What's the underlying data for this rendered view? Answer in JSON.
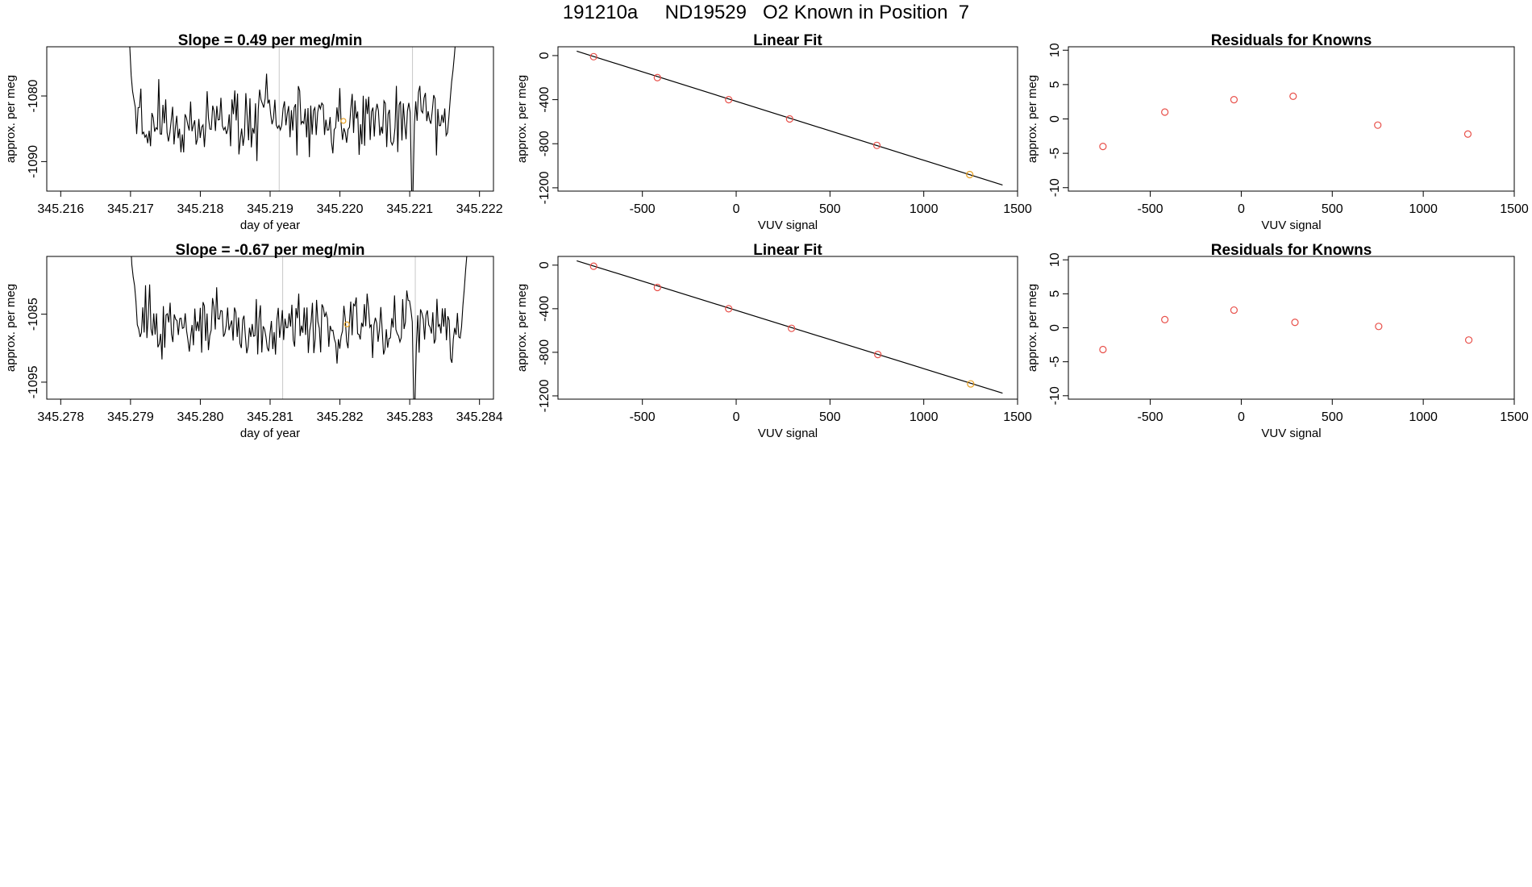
{
  "page_title": "191210a     ND19529   O2 Known in Position  7",
  "colors": {
    "line": "#000000",
    "points": "#e8504a",
    "highlight": "#e8a020",
    "vgrid": "#c8c8c8"
  },
  "chart_data": [
    {
      "type": "line",
      "title": "Slope =  0.49  per meg/min",
      "xlabel": "day of year",
      "ylabel": "approx. per meg",
      "xlim": [
        345.2158,
        345.2222
      ],
      "ylim": [
        -1094.5,
        -1072.5
      ],
      "xticks": [
        345.216,
        345.217,
        345.218,
        345.219,
        345.22,
        345.221,
        345.222
      ],
      "xtick_labels": [
        "345.216",
        "345.217",
        "345.218",
        "345.219",
        "345.220",
        "345.221",
        "345.222"
      ],
      "yticks": [
        -1080,
        -1090
      ],
      "ytick_labels": [
        "-1080",
        "-1090"
      ],
      "vlines": [
        345.21913,
        345.22104
      ],
      "highlight_point": {
        "x": 345.22005,
        "y": -1083.8
      },
      "series": {
        "x_start": 345.21695,
        "x_end": 345.22168,
        "n": 240,
        "seed": 17,
        "mean": -1083.8,
        "spread": 3.2,
        "spike": -1094.5,
        "spike_x": 345.22103,
        "start_y": -1068,
        "end_y": -1068
      }
    },
    {
      "type": "scatter",
      "title": "Linear Fit",
      "xlabel": "VUV signal",
      "ylabel": "approx. per meg",
      "xlim": [
        -950,
        1500
      ],
      "ylim": [
        -1230,
        80
      ],
      "xticks": [
        -500,
        0,
        500,
        1000,
        1500
      ],
      "xtick_labels": [
        "-500",
        "0",
        "500",
        "1000",
        "1500"
      ],
      "yticks": [
        0,
        -400,
        -800,
        -1200
      ],
      "ytick_labels": [
        "0",
        "-400",
        "-800",
        "-1200"
      ],
      "fit_line": {
        "x": [
          -850,
          1420
        ],
        "y": [
          40,
          -1175
        ]
      },
      "points": {
        "x": [
          -760,
          -420,
          -40,
          285,
          750,
          1245
        ],
        "y": [
          -10,
          -200,
          -400,
          -575,
          -815,
          -1080
        ]
      },
      "highlight_index": 5
    },
    {
      "type": "scatter",
      "title": "Residuals for Knowns",
      "xlabel": "VUV signal",
      "ylabel": "approx. per meg",
      "xlim": [
        -950,
        1500
      ],
      "ylim": [
        -10.5,
        10.5
      ],
      "xticks": [
        -500,
        0,
        500,
        1000,
        1500
      ],
      "xtick_labels": [
        "-500",
        "0",
        "500",
        "1000",
        "1500"
      ],
      "yticks": [
        10,
        5,
        0,
        -5,
        -10
      ],
      "ytick_labels": [
        "10",
        "5",
        "0",
        "-5",
        "-10"
      ],
      "points": {
        "x": [
          -760,
          -420,
          -40,
          285,
          750,
          1245
        ],
        "y": [
          -4.0,
          1.0,
          2.8,
          3.3,
          -0.9,
          -2.2
        ]
      }
    },
    {
      "type": "line",
      "title": "Slope =  -0.67  per meg/min",
      "xlabel": "day of year",
      "ylabel": "approx. per meg",
      "xlim": [
        345.2778,
        345.2842
      ],
      "ylim": [
        -1097.5,
        -1076.5
      ],
      "xticks": [
        345.278,
        345.279,
        345.28,
        345.281,
        345.282,
        345.283,
        345.284
      ],
      "xtick_labels": [
        "345.278",
        "345.279",
        "345.280",
        "345.281",
        "345.282",
        "345.283",
        "345.284"
      ],
      "yticks": [
        -1085,
        -1095
      ],
      "ytick_labels": [
        "-1085",
        "-1095"
      ],
      "vlines": [
        345.28118,
        345.28308
      ],
      "highlight_point": {
        "x": 345.2821,
        "y": -1086.5
      },
      "series": {
        "x_start": 345.27898,
        "x_end": 345.28386,
        "n": 250,
        "seed": 29,
        "mean": -1086.5,
        "spread": 3.0,
        "spike": -1097.5,
        "spike_x": 345.28307,
        "start_y": -1072,
        "end_y": -1072
      }
    },
    {
      "type": "scatter",
      "title": "Linear Fit",
      "xlabel": "VUV signal",
      "ylabel": "approx. per meg",
      "xlim": [
        -950,
        1500
      ],
      "ylim": [
        -1230,
        80
      ],
      "xticks": [
        -500,
        0,
        500,
        1000,
        1500
      ],
      "xtick_labels": [
        "-500",
        "0",
        "500",
        "1000",
        "1500"
      ],
      "yticks": [
        0,
        -400,
        -800,
        -1200
      ],
      "ytick_labels": [
        "0",
        "-400",
        "-800",
        "-1200"
      ],
      "fit_line": {
        "x": [
          -850,
          1420
        ],
        "y": [
          40,
          -1175
        ]
      },
      "points": {
        "x": [
          -760,
          -420,
          -40,
          295,
          755,
          1250
        ],
        "y": [
          -10,
          -205,
          -400,
          -580,
          -820,
          -1090
        ]
      },
      "highlight_index": 5
    },
    {
      "type": "scatter",
      "title": "Residuals for Knowns",
      "xlabel": "VUV signal",
      "ylabel": "approx. per meg",
      "xlim": [
        -950,
        1500
      ],
      "ylim": [
        -10.5,
        10.5
      ],
      "xticks": [
        -500,
        0,
        500,
        1000,
        1500
      ],
      "xtick_labels": [
        "-500",
        "0",
        "500",
        "1000",
        "1500"
      ],
      "yticks": [
        10,
        5,
        0,
        -5,
        -10
      ],
      "ytick_labels": [
        "10",
        "5",
        "0",
        "-5",
        "-10"
      ],
      "points": {
        "x": [
          -760,
          -420,
          -40,
          295,
          755,
          1250
        ],
        "y": [
          -3.2,
          1.2,
          2.6,
          0.8,
          0.2,
          -1.8
        ]
      }
    }
  ]
}
